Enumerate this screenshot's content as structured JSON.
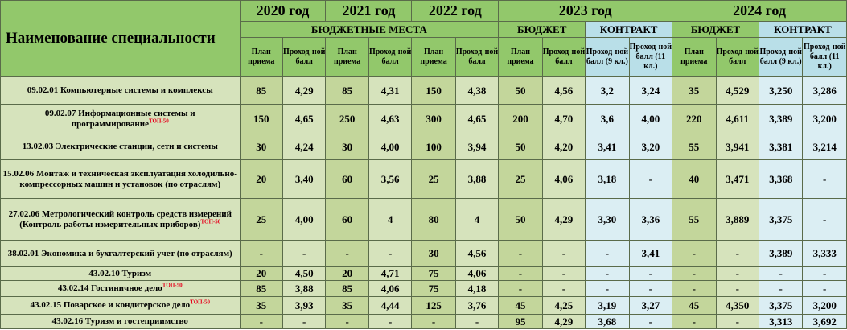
{
  "header": {
    "name_col": "Наименование специальности",
    "years": [
      "2020 год",
      "2021 год",
      "2022 год",
      "2023 год",
      "2024 год"
    ],
    "budget_places": "БЮДЖЕТНЫЕ МЕСТА",
    "budget": "БЮДЖЕТ",
    "contract": "КОНТРАКТ",
    "plan": "План приема",
    "pass": "Проход-ной балл",
    "pass9": "Проход-ной балл (9 кл.)",
    "pass11": "Проход-ной балл (11 кл.)"
  },
  "rows": [
    {
      "name": "09.02.01 Компьютерные системы и комплексы",
      "top": "",
      "cells": [
        "85",
        "4,29",
        "85",
        "4,31",
        "150",
        "4,38",
        "50",
        "4,56",
        "3,2",
        "3,24",
        "35",
        "4,529",
        "3,250",
        "3,286"
      ]
    },
    {
      "name": "09.02.07 Информационные системы и программирование",
      "top": "ТОП-50",
      "cells": [
        "150",
        "4,65",
        "250",
        "4,63",
        "300",
        "4,65",
        "200",
        "4,70",
        "3,6",
        "4,00",
        "220",
        "4,611",
        "3,389",
        "3,200"
      ]
    },
    {
      "name": "13.02.03 Электрические станции, сети и системы",
      "top": "",
      "cells": [
        "30",
        "4,24",
        "30",
        "4,00",
        "100",
        "3,94",
        "50",
        "4,20",
        "3,41",
        "3,20",
        "55",
        "3,941",
        "3,381",
        "3,214"
      ]
    },
    {
      "name": "15.02.06 Монтаж и техническая эксплуатация холодильно-компрессорных машин и установок (по отраслям)",
      "top": "",
      "cells": [
        "20",
        "3,40",
        "60",
        "3,56",
        "25",
        "3,88",
        "25",
        "4,06",
        "3,18",
        "-",
        "40",
        "3,471",
        "3,368",
        "-"
      ]
    },
    {
      "name": "27.02.06 Метрологический контроль средств измерений (Контроль работы измерительных приборов)",
      "top": "ТОП-50",
      "cells": [
        "25",
        "4,00",
        "60",
        "4",
        "80",
        "4",
        "50",
        "4,29",
        "3,30",
        "3,36",
        "55",
        "3,889",
        "3,375",
        "-"
      ]
    },
    {
      "name": "38.02.01 Экономика и бухгалтерский учет (по отраслям)",
      "top": "",
      "cells": [
        "-",
        "-",
        "-",
        "-",
        "30",
        "4,56",
        "-",
        "-",
        "-",
        "3,41",
        "-",
        "-",
        "3,389",
        "3,333"
      ]
    },
    {
      "name": "43.02.10 Туризм",
      "top": "",
      "cells": [
        "20",
        "4,50",
        "20",
        "4,71",
        "75",
        "4,06",
        "-",
        "-",
        "-",
        "-",
        "-",
        "-",
        "-",
        "-"
      ]
    },
    {
      "name": "43.02.14 Гостиничное дело",
      "top": "ТОП-50",
      "cells": [
        "85",
        "3,88",
        "85",
        "4,06",
        "75",
        "4,18",
        "-",
        "-",
        "-",
        "-",
        "-",
        "-",
        "-",
        "-"
      ]
    },
    {
      "name": "43.02.15 Поварское и кондитерское дело",
      "top": "ТОП-50",
      "cells": [
        "35",
        "3,93",
        "35",
        "4,44",
        "125",
        "3,76",
        "45",
        "4,25",
        "3,19",
        "3,27",
        "45",
        "4,350",
        "3,375",
        "3,200"
      ]
    },
    {
      "name": "43.02.16 Туризм и гостеприимство",
      "top": "",
      "cells": [
        "-",
        "-",
        "-",
        "-",
        "-",
        "-",
        "95",
        "4,29",
        "3,68",
        "-",
        "-",
        "-",
        "3,313",
        "3,692"
      ]
    }
  ],
  "colors": {
    "header_green": "#92c86b",
    "cell_green_dark": "#c3d69b",
    "cell_green_light": "#d6e3bc",
    "contract_blue": "#b9dfe8",
    "top_label_red": "#e8001c"
  }
}
